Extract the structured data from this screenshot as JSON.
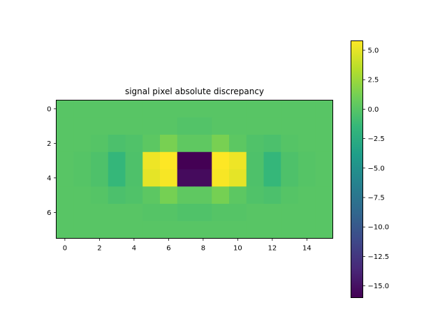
{
  "chart_data": {
    "type": "heatmap",
    "title": "signal pixel absolute discrepancy",
    "xlabel": "",
    "ylabel": "",
    "colormap": "viridis",
    "vmin": -16.0,
    "vmax": 5.8,
    "x_ticks": [
      0,
      2,
      4,
      6,
      8,
      10,
      12,
      14
    ],
    "y_ticks": [
      0,
      2,
      4,
      6
    ],
    "colorbar_ticks": [
      5.0,
      2.5,
      0.0,
      -2.5,
      -5.0,
      -7.5,
      -10.0,
      -12.5,
      -15.0
    ],
    "colorbar_tick_labels": [
      "5.0",
      "2.5",
      "0.0",
      "−2.5",
      "−5.0",
      "−7.5",
      "−10.0",
      "−12.5",
      "−15.0"
    ],
    "x_tick_labels": [
      "0",
      "2",
      "4",
      "6",
      "8",
      "10",
      "12",
      "14"
    ],
    "y_tick_labels": [
      "0",
      "2",
      "4",
      "6"
    ],
    "rows": 8,
    "cols": 16,
    "grid": false,
    "values": [
      [
        0.0,
        0.0,
        0.0,
        0.0,
        0.0,
        0.0,
        0.0,
        0.0,
        0.0,
        0.0,
        0.0,
        0.0,
        0.0,
        0.0,
        0.0,
        0.0
      ],
      [
        0.0,
        0.0,
        0.0,
        0.0,
        0.0,
        0.0,
        0.0,
        -0.2,
        -0.2,
        0.0,
        0.0,
        0.0,
        0.0,
        0.0,
        0.0,
        0.0
      ],
      [
        0.0,
        0.0,
        -0.1,
        -0.5,
        -0.3,
        0.2,
        1.3,
        0.3,
        0.3,
        1.3,
        0.2,
        -0.3,
        -0.5,
        -0.1,
        0.0,
        0.0
      ],
      [
        0.0,
        -0.1,
        -0.4,
        -1.6,
        -0.4,
        5.3,
        5.8,
        -16.0,
        -16.0,
        5.8,
        5.3,
        -0.4,
        -1.6,
        -0.4,
        -0.1,
        0.0
      ],
      [
        0.0,
        -0.1,
        -0.4,
        -1.5,
        -0.4,
        5.0,
        5.6,
        -15.4,
        -15.4,
        5.6,
        5.0,
        -0.4,
        -1.5,
        -0.4,
        -0.1,
        0.0
      ],
      [
        0.0,
        0.0,
        -0.1,
        -0.5,
        -0.3,
        0.2,
        1.2,
        0.3,
        0.3,
        1.2,
        0.2,
        -0.3,
        -0.5,
        -0.1,
        0.0,
        0.0
      ],
      [
        0.0,
        0.0,
        0.0,
        0.0,
        0.0,
        -0.1,
        -0.1,
        -0.3,
        -0.3,
        -0.1,
        -0.1,
        0.0,
        0.0,
        0.0,
        0.0,
        0.0
      ],
      [
        0.0,
        0.0,
        0.0,
        0.0,
        0.0,
        0.0,
        0.0,
        0.0,
        0.0,
        0.0,
        0.0,
        0.0,
        0.0,
        0.0,
        0.0,
        0.0
      ]
    ]
  }
}
